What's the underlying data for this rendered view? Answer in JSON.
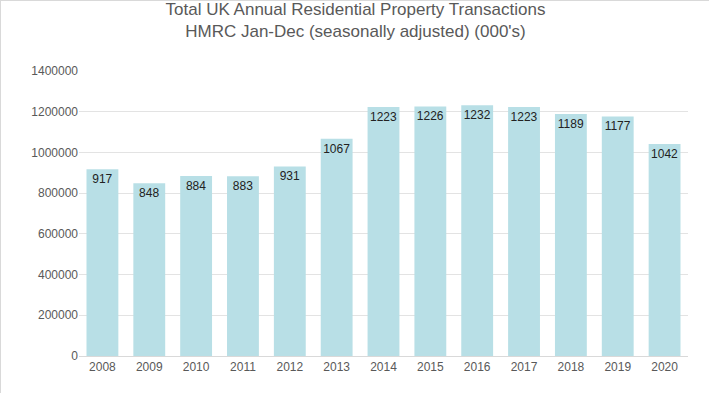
{
  "chart_data": {
    "type": "bar",
    "title": "Total UK Annual Residential Property Transactions",
    "subtitle": "HMRC Jan-Dec (seasonally adjusted) (000's)",
    "categories": [
      "2008",
      "2009",
      "2010",
      "2011",
      "2012",
      "2013",
      "2014",
      "2015",
      "2016",
      "2017",
      "2018",
      "2019",
      "2020"
    ],
    "values": [
      917000,
      848000,
      884000,
      883000,
      931000,
      1067000,
      1223000,
      1226000,
      1232000,
      1223000,
      1189000,
      1177000,
      1042000
    ],
    "value_labels": [
      "917",
      "848",
      "884",
      "883",
      "931",
      "1067",
      "1223",
      "1226",
      "1232",
      "1223",
      "1189",
      "1177",
      "1042"
    ],
    "data_labels": true,
    "color": "#b8dfe6",
    "ylim": [
      0,
      1400000
    ],
    "yticks": [
      0,
      200000,
      400000,
      600000,
      800000,
      1000000,
      1200000,
      1400000
    ],
    "grid": true
  }
}
